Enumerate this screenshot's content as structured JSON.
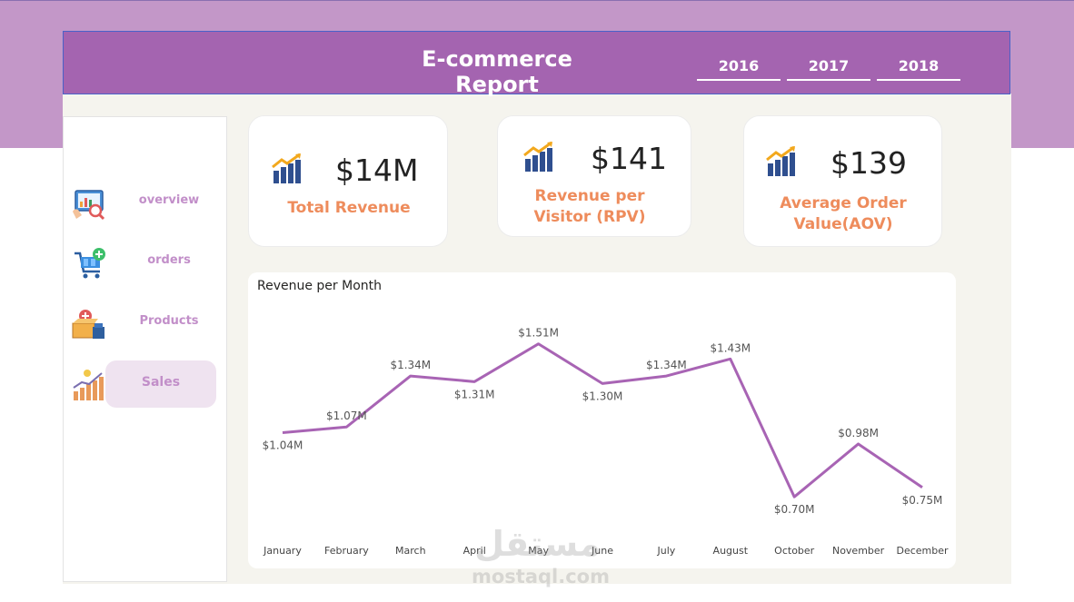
{
  "header": {
    "title": "E-commerce Report"
  },
  "years": [
    "2016",
    "2017",
    "2018"
  ],
  "sidebar": {
    "items": [
      {
        "label": "overview",
        "icon": "dashboard-icon"
      },
      {
        "label": "orders",
        "icon": "shopping-cart-icon"
      },
      {
        "label": "Products",
        "icon": "product-boxes-icon"
      },
      {
        "label": "Sales",
        "icon": "sales-growth-icon",
        "active": true
      }
    ]
  },
  "kpis": [
    {
      "value": "$14M",
      "label": "Total Revenue"
    },
    {
      "value": "$141",
      "label": "Revenue per Visitor (RPV)"
    },
    {
      "value": "$139",
      "label": "Average Order Value(AOV)"
    }
  ],
  "chart_data": {
    "type": "line",
    "title": "Revenue per Month",
    "categories": [
      "January",
      "February",
      "March",
      "April",
      "May",
      "June",
      "July",
      "August",
      "October",
      "November",
      "December"
    ],
    "values": [
      1.04,
      1.07,
      1.34,
      1.31,
      1.51,
      1.3,
      1.34,
      1.43,
      0.7,
      0.98,
      0.75
    ],
    "data_labels": [
      "$1.04M",
      "$1.07M",
      "$1.34M",
      "$1.31M",
      "$1.51M",
      "$1.30M",
      "$1.34M",
      "$1.43M",
      "$0.70M",
      "$0.98M",
      "$0.75M"
    ],
    "unit": "$M",
    "xlabel": "",
    "ylabel": "",
    "ylim": [
      0.6,
      1.6
    ],
    "grid": false,
    "line_color": "#a864b4"
  },
  "watermark": {
    "arabic": "مستقل",
    "latin": "mostaql.com"
  },
  "colors": {
    "band": "#c397c8",
    "header": "#a464b0",
    "accent_text": "#ee8c5c",
    "nav_text": "#c28fc9",
    "nav_active_bg": "#efe3f0"
  }
}
